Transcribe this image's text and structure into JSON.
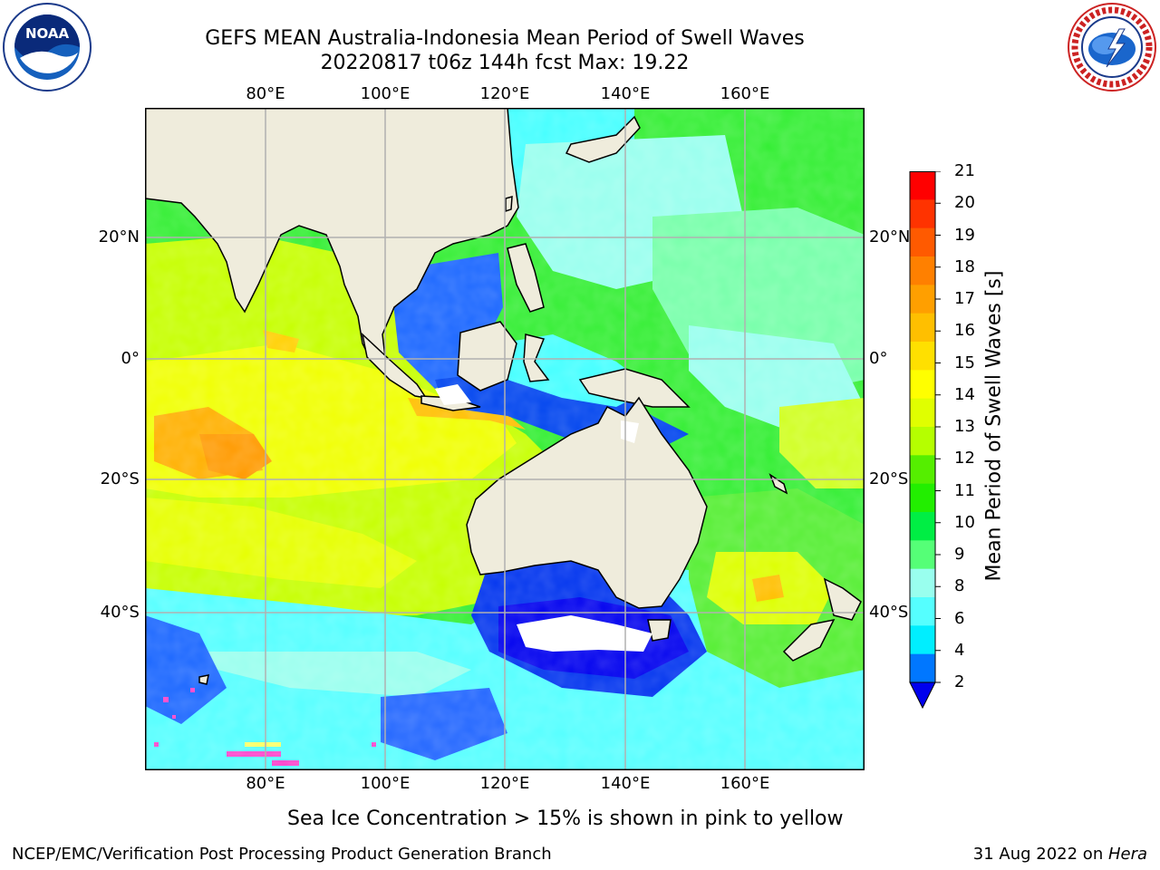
{
  "header": {
    "title_line1": "GEFS MEAN Australia-Indonesia Mean Period of Swell Waves",
    "title_line2": "20220817 t06z 144h fcst   Max: 19.22"
  },
  "logos": {
    "left": {
      "icon": "noaa-logo",
      "text": "NOAA"
    },
    "right": {
      "icon": "nws-logo",
      "text": "NATIONAL WEATHER SERVICE"
    }
  },
  "axes": {
    "lon_top": [
      "80°E",
      "100°E",
      "120°E",
      "140°E",
      "160°E"
    ],
    "lon_bottom": [
      "80°E",
      "100°E",
      "120°E",
      "140°E",
      "160°E"
    ],
    "lat_left": [
      "20°N",
      "0°",
      "20°S",
      "40°S"
    ],
    "lat_right": [
      "20°N",
      "0°",
      "20°S",
      "40°S"
    ]
  },
  "colorbar": {
    "label": "Mean Period of Swell Waves [s]",
    "ticks": [
      "21",
      "20",
      "19",
      "18",
      "17",
      "16",
      "15",
      "14",
      "13",
      "12",
      "11",
      "10",
      "9",
      "8",
      "6",
      "4",
      "2"
    ],
    "colors": [
      "#ff0000",
      "#ff3300",
      "#ff5a00",
      "#ff8000",
      "#ff9f00",
      "#ffbf00",
      "#ffe000",
      "#ffff00",
      "#e0ff00",
      "#b5ff00",
      "#55ee00",
      "#22ee00",
      "#00ee44",
      "#55ff77",
      "#99ffee",
      "#55ffff",
      "#00eeff",
      "#0077ff",
      "#0000ee"
    ],
    "extend": "min"
  },
  "footer": {
    "note": "Sea Ice Concentration > 15% is shown in pink to yellow",
    "credit": "NCEP/EMC/Verification Post Processing Product Generation Branch",
    "date": "31 Aug 2022 on ",
    "host": "Hera"
  },
  "map": {
    "region": "Australia-Indonesia",
    "land_color": "#efecdc",
    "grid_color": "#b0b0b0",
    "ice_color": "#ff44cc"
  }
}
